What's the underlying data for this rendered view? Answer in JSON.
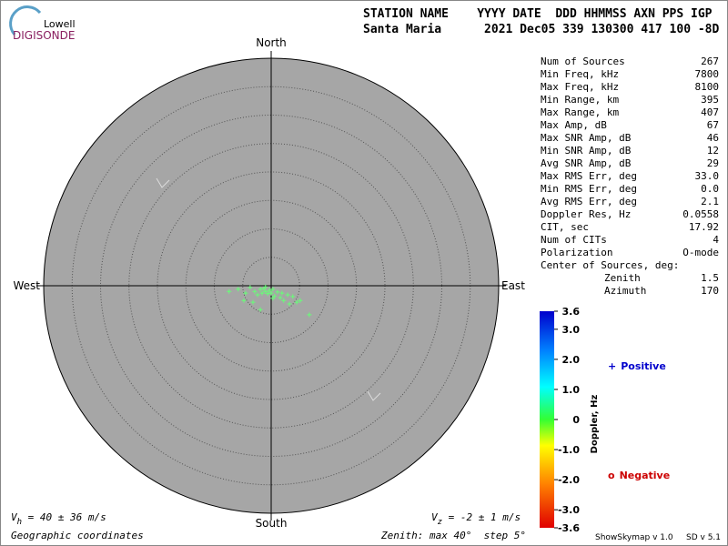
{
  "logo": {
    "top": "Lowell",
    "bottom": "DIGISONDE"
  },
  "header": {
    "line1": "STATION NAME    YYYY DATE  DDD HHMMSS AXN PPS IGP",
    "line2": "Santa Maria      2021 Dec05 339 130300 417 100 -8D"
  },
  "info": {
    "rows": [
      [
        "Num of Sources",
        "267"
      ],
      [
        "Min Freq, kHz",
        "7800"
      ],
      [
        "Max Freq, kHz",
        "8100"
      ],
      [
        "Min Range, km",
        "395"
      ],
      [
        "Max Range, km",
        "407"
      ],
      [
        "Max Amp, dB",
        "67"
      ],
      [
        "Max SNR Amp, dB",
        "46"
      ],
      [
        "Min SNR Amp, dB",
        "12"
      ],
      [
        "Avg SNR Amp, dB",
        "29"
      ],
      [
        "Max RMS Err, deg",
        "33.0"
      ],
      [
        "Min RMS Err, deg",
        "0.0"
      ],
      [
        "Avg RMS Err, deg",
        "2.1"
      ],
      [
        "Doppler Res, Hz",
        "0.0558"
      ],
      [
        "CIT, sec",
        "17.92"
      ],
      [
        "Num of CITs",
        "4"
      ],
      [
        "Polarization",
        "O-mode"
      ]
    ],
    "center_title": "Center of Sources, deg:",
    "center_rows": [
      [
        "Zenith",
        "1.5"
      ],
      [
        "Azimuth",
        "170"
      ]
    ]
  },
  "chart_data": {
    "type": "polar-scatter",
    "directions": {
      "north": "North",
      "south": "South",
      "east": "East",
      "west": "West"
    },
    "zlim": [
      0,
      40
    ],
    "rings": [
      5,
      10,
      15,
      20,
      25,
      30,
      35
    ],
    "grid": true,
    "color": "#66ff77",
    "points": {
      "x": [
        -7.4,
        -5.8,
        -4.5,
        -3.7,
        -2.9,
        -2.4,
        -1.9,
        -1.6,
        -1.3,
        -1.0,
        -0.6,
        -0.3,
        0,
        0.3,
        0.6,
        1.1,
        1.6,
        2.2,
        2.9,
        3.2,
        3.8,
        4.5,
        5.1,
        6.7,
        -1.9,
        -4.8,
        -3.2,
        -1.0,
        0.3,
        1.9
      ],
      "y": [
        -1.0,
        -0.6,
        -1.3,
        -0.3,
        -1.0,
        -1.6,
        -0.6,
        -1.3,
        -0.5,
        -1.0,
        -1.4,
        -0.8,
        -1.3,
        -0.6,
        -1.8,
        -1.1,
        -2.1,
        -2.6,
        -1.6,
        -3.2,
        -1.9,
        -2.9,
        -2.6,
        -5.1,
        -4.2,
        -2.6,
        -2.9,
        -0.2,
        -2.2,
        -1.3
      ]
    },
    "colorbar": {
      "label": "Doppler, Hz",
      "clim": [
        -3.6,
        3.6
      ],
      "ticks": [
        3.6,
        {
          "value": 3,
          "label": "3.0"
        },
        {
          "value": 2,
          "label": "2.0"
        },
        {
          "value": 1,
          "label": "1.0"
        },
        0,
        {
          "value": -1,
          "label": "-1.0"
        },
        {
          "value": -2,
          "label": "-2.0"
        },
        {
          "value": -3,
          "label": "-3.0"
        },
        -3.6
      ]
    },
    "legend": [
      {
        "symbol": "+",
        "name": "Positive",
        "color": "#0000cc"
      },
      {
        "symbol": "o",
        "name": "Negative",
        "color": "#cc0000"
      }
    ]
  },
  "footer": {
    "vh": [
      "V",
      "h",
      " = 40 ± 36 m/s"
    ],
    "vz": [
      "V",
      "z",
      " = -2 ± 1 m/s"
    ],
    "coords": "Geographic coordinates",
    "zenith": "Zenith: max 40°  step 5°",
    "version1": "ShowSkymap v 1.0",
    "version2": "SD v 5.1"
  }
}
